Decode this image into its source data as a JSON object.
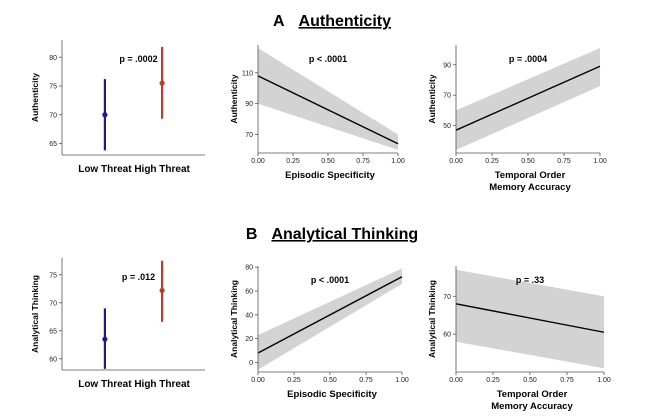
{
  "sections": [
    {
      "letter": "A",
      "title": "Authenticity"
    },
    {
      "letter": "B",
      "title": "Analytical Thinking"
    }
  ],
  "chart_data": [
    {
      "type": "errorbar",
      "section": "A",
      "ylabel": "Authenticity",
      "annotation": "p = .0002",
      "categories": [
        "Low Threat",
        "High Threat"
      ],
      "means": [
        70,
        75.5
      ],
      "lower": [
        63.8,
        69.3
      ],
      "upper": [
        76.2,
        81.8
      ],
      "colors": [
        "#1f1a8a",
        "#c0392b"
      ],
      "ylim": [
        63,
        83
      ],
      "yticks": [
        65,
        70,
        75,
        80
      ]
    },
    {
      "type": "line",
      "section": "A",
      "ylabel": "Authenticity",
      "xlabel": [
        "Episodic Specificity"
      ],
      "annotation": "p < .0001",
      "x": [
        0,
        1
      ],
      "y": [
        108,
        64
      ],
      "band_lower": [
        90,
        60
      ],
      "band_upper": [
        126,
        70
      ],
      "xlim": [
        0,
        1
      ],
      "ylim": [
        58,
        128
      ],
      "xticks": [
        "0.00",
        "0.25",
        "0.50",
        "0.75",
        "1.00"
      ],
      "yticks": [
        70,
        90,
        110
      ]
    },
    {
      "type": "line",
      "section": "A",
      "ylabel": "Authenticity",
      "xlabel": [
        "Temporal Order",
        "Memory Accuracy"
      ],
      "annotation": "p = .0004",
      "x": [
        0,
        1
      ],
      "y": [
        47,
        89
      ],
      "band_lower": [
        34,
        76
      ],
      "band_upper": [
        60,
        101
      ],
      "xlim": [
        0,
        1
      ],
      "ylim": [
        32,
        103
      ],
      "xticks": [
        "0.00",
        "0.25",
        "0.50",
        "0.75",
        "1.00"
      ],
      "yticks": [
        50,
        70,
        90
      ]
    },
    {
      "type": "errorbar",
      "section": "B",
      "ylabel": "Analytical Thinking",
      "annotation": "p = .012",
      "categories": [
        "Low Threat",
        "High Threat"
      ],
      "means": [
        63.5,
        72.2
      ],
      "lower": [
        58.2,
        66.6
      ],
      "upper": [
        69,
        77.5
      ],
      "colors": [
        "#1f1a8a",
        "#c0392b"
      ],
      "ylim": [
        58,
        78
      ],
      "yticks": [
        60,
        65,
        70,
        75
      ]
    },
    {
      "type": "line",
      "section": "B",
      "ylabel": "Analytical Thinking",
      "xlabel": [
        "Episodic Specificity"
      ],
      "annotation": "p < .0001",
      "x": [
        0,
        1
      ],
      "y": [
        8,
        72
      ],
      "band_lower": [
        -6,
        66
      ],
      "band_upper": [
        23,
        79
      ],
      "xlim": [
        0,
        1
      ],
      "ylim": [
        -8,
        81
      ],
      "xticks": [
        "0.00",
        "0.25",
        "0.50",
        "0.75",
        "1.00"
      ],
      "yticks": [
        0,
        20,
        40,
        60,
        80
      ]
    },
    {
      "type": "line",
      "section": "B",
      "ylabel": "Analytical Thinking",
      "xlabel": [
        "Temporal Order",
        "Memory Accuracy"
      ],
      "annotation": "p = .33",
      "x": [
        0,
        1
      ],
      "y": [
        68,
        60.5
      ],
      "band_lower": [
        58,
        51
      ],
      "band_upper": [
        77,
        70
      ],
      "xlim": [
        0,
        1
      ],
      "ylim": [
        50,
        78
      ],
      "xticks": [
        "0.00",
        "0.25",
        "0.50",
        "0.75",
        "1.00"
      ],
      "yticks": [
        60,
        70
      ]
    }
  ]
}
